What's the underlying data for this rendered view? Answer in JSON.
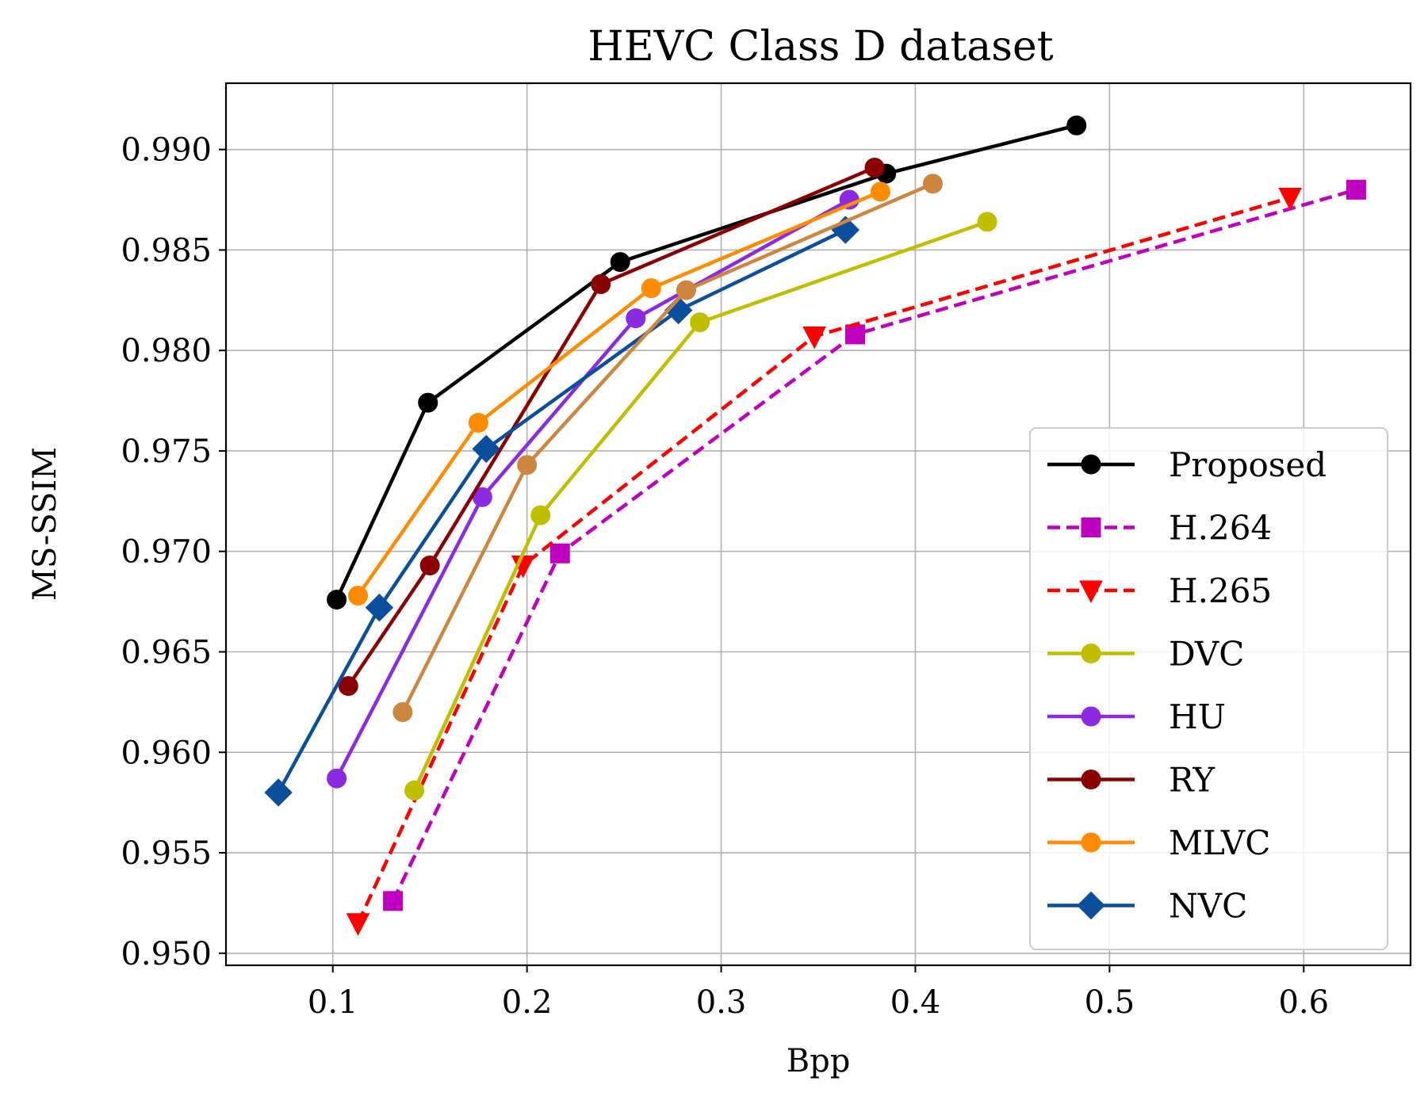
{
  "chart_data": {
    "type": "line",
    "title": "HEVC Class D dataset",
    "xlabel": "Bpp",
    "ylabel": "MS-SSIM",
    "xlim": [
      0.045,
      0.655
    ],
    "ylim": [
      0.9494,
      0.9933
    ],
    "xticks": [
      0.1,
      0.2,
      0.3,
      0.4,
      0.5,
      0.6
    ],
    "xtick_labels": [
      "0.1",
      "0.2",
      "0.3",
      "0.4",
      "0.5",
      "0.6"
    ],
    "yticks": [
      0.95,
      0.955,
      0.96,
      0.965,
      0.97,
      0.975,
      0.98,
      0.985,
      0.99
    ],
    "ytick_labels": [
      "0.950",
      "0.955",
      "0.960",
      "0.965",
      "0.970",
      "0.975",
      "0.980",
      "0.985",
      "0.990"
    ],
    "grid": true,
    "legend_position": "bottom-right",
    "series": [
      {
        "name": "Proposed",
        "color": "#000000",
        "dash": "solid",
        "marker": "circle",
        "x": [
          0.102,
          0.149,
          0.248,
          0.385,
          0.483
        ],
        "y": [
          0.9676,
          0.9774,
          0.9844,
          0.9888,
          0.9912
        ]
      },
      {
        "name": "H.264",
        "color": "#bf00bf",
        "dash": "dashed",
        "marker": "square",
        "x": [
          0.131,
          0.217,
          0.369,
          0.627
        ],
        "y": [
          0.9526,
          0.9699,
          0.9808,
          0.988
        ]
      },
      {
        "name": "H.265",
        "color": "#ff0000",
        "dash": "dashed",
        "marker": "triangle-down",
        "x": [
          0.113,
          0.198,
          0.348,
          0.593
        ],
        "y": [
          0.9515,
          0.9693,
          0.9807,
          0.9876
        ]
      },
      {
        "name": "DVC",
        "color": "#bfbf00",
        "dash": "solid",
        "marker": "circle",
        "x": [
          0.142,
          0.207,
          0.289,
          0.437
        ],
        "y": [
          0.9581,
          0.9718,
          0.9814,
          0.9864
        ]
      },
      {
        "name": "HU",
        "color": "#8a2be2",
        "dash": "solid",
        "marker": "circle",
        "x": [
          0.102,
          0.177,
          0.256,
          0.366
        ],
        "y": [
          0.9587,
          0.9727,
          0.9816,
          0.9875
        ]
      },
      {
        "name": "RY",
        "color": "#8b0000",
        "dash": "solid",
        "marker": "circle",
        "x": [
          0.108,
          0.15,
          0.238,
          0.379
        ],
        "y": [
          0.9633,
          0.9693,
          0.9833,
          0.9891
        ]
      },
      {
        "name": "MLVC",
        "color": "#ff8c00",
        "dash": "solid",
        "marker": "circle",
        "x": [
          0.113,
          0.175,
          0.264,
          0.382
        ],
        "y": [
          0.9678,
          0.9764,
          0.9831,
          0.9879
        ]
      },
      {
        "name": "NVC",
        "color": "#0b4f9c",
        "dash": "solid",
        "marker": "diamond",
        "x": [
          0.072,
          0.124,
          0.179,
          0.278,
          0.364
        ],
        "y": [
          0.958,
          0.9672,
          0.9751,
          0.982,
          0.986
        ]
      },
      {
        "name": "",
        "color": "#cd853f",
        "dash": "solid",
        "marker": "circle",
        "x": [
          0.136,
          0.2,
          0.282,
          0.409
        ],
        "y": [
          0.962,
          0.9743,
          0.983,
          0.9883
        ]
      }
    ]
  }
}
